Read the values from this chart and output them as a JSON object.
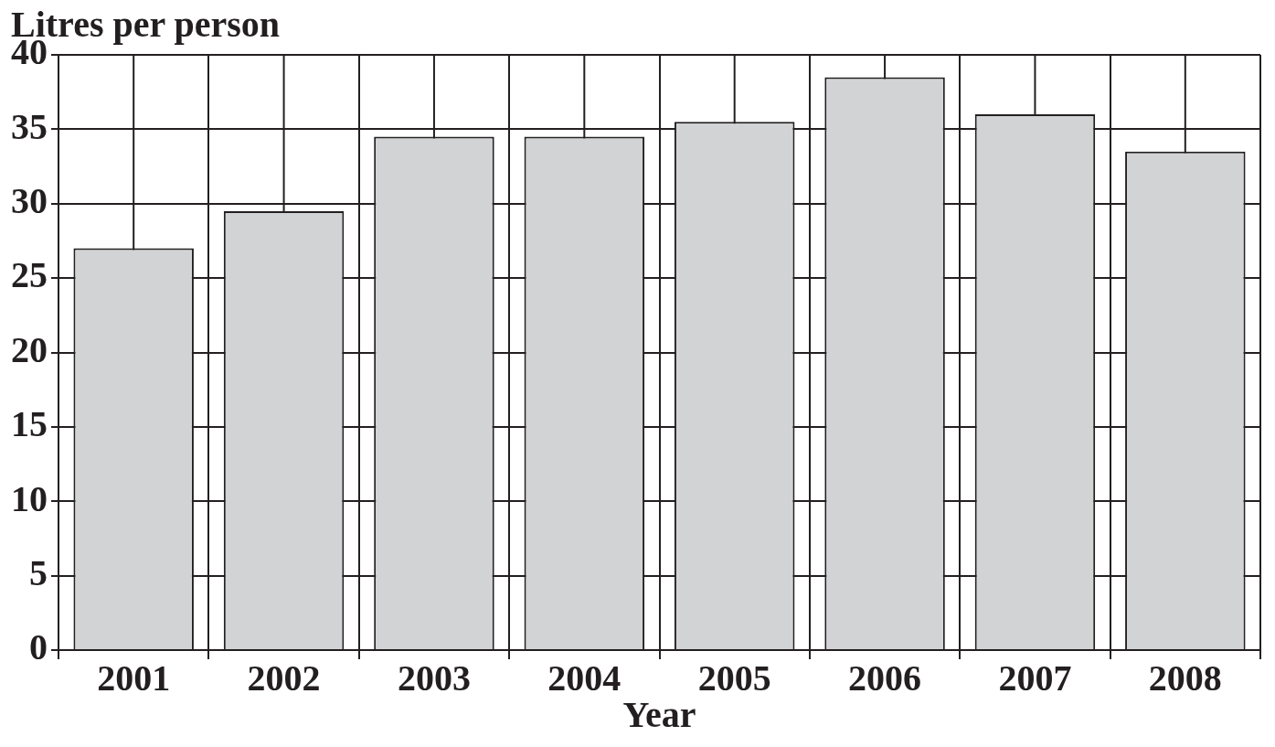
{
  "chart_data": {
    "type": "bar",
    "xlabel": "Year",
    "ylabel": "Litres per person",
    "categories": [
      "2001",
      "2002",
      "2003",
      "2004",
      "2005",
      "2006",
      "2007",
      "2008"
    ],
    "values": [
      27,
      29.5,
      34.5,
      34.5,
      35.5,
      38.5,
      36,
      33.5
    ],
    "color": "#d1d3d4",
    "ylim": [
      0,
      40
    ],
    "yticks": [
      0,
      5,
      10,
      15,
      20,
      25,
      30,
      35,
      40
    ],
    "grid": true
  }
}
